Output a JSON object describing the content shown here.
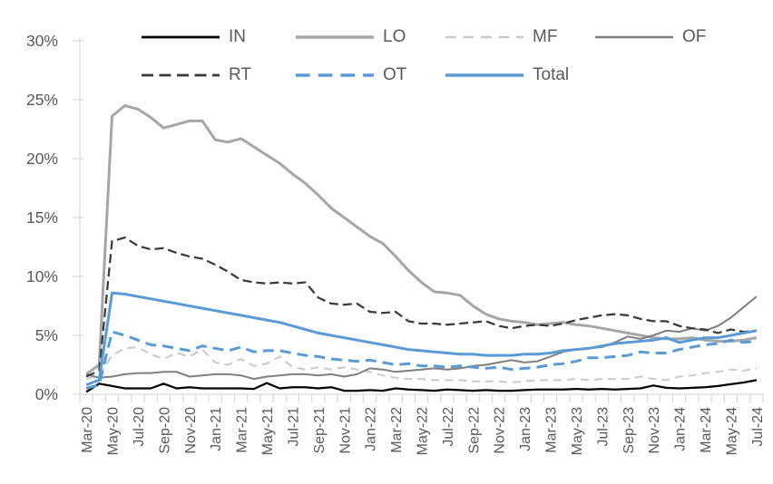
{
  "chart_data": {
    "type": "line",
    "title": "",
    "xlabel": "",
    "ylabel": "",
    "y_min": 0,
    "y_max": 30,
    "grid": "none",
    "legend_position": "top",
    "y_ticks": [
      "0%",
      "5%",
      "10%",
      "15%",
      "20%",
      "25%",
      "30%"
    ],
    "x": [
      "Mar-20",
      "Apr-20",
      "May-20",
      "Jun-20",
      "Jul-20",
      "Aug-20",
      "Sep-20",
      "Oct-20",
      "Nov-20",
      "Dec-20",
      "Jan-21",
      "Feb-21",
      "Mar-21",
      "Apr-21",
      "May-21",
      "Jun-21",
      "Jul-21",
      "Aug-21",
      "Sep-21",
      "Oct-21",
      "Nov-21",
      "Dec-21",
      "Jan-22",
      "Feb-22",
      "Mar-22",
      "Apr-22",
      "May-22",
      "Jun-22",
      "Jul-22",
      "Aug-22",
      "Sep-22",
      "Oct-22",
      "Nov-22",
      "Dec-22",
      "Jan-23",
      "Feb-23",
      "Mar-23",
      "Apr-23",
      "May-23",
      "Jun-23",
      "Jul-23",
      "Aug-23",
      "Sep-23",
      "Oct-23",
      "Nov-23",
      "Dec-23",
      "Jan-24",
      "Feb-24",
      "Mar-24",
      "Apr-24",
      "May-24",
      "Jun-24",
      "Jul-24"
    ],
    "x_tick_labels": [
      "Mar-20",
      "May-20",
      "Jul-20",
      "Sep-20",
      "Nov-20",
      "Jan-21",
      "Mar-21",
      "May-21",
      "Jul-21",
      "Sep-21",
      "Nov-21",
      "Jan-22",
      "Mar-22",
      "May-22",
      "Jul-22",
      "Sep-22",
      "Nov-22",
      "Jan-23",
      "Mar-23",
      "May-23",
      "Jul-23",
      "Sep-23",
      "Nov-23",
      "Jan-24",
      "Mar-24",
      "May-24",
      "Jul-24"
    ],
    "series": [
      {
        "name": "IN",
        "color": "#000000",
        "style": "solid",
        "width": 2.25,
        "dash": null,
        "values": [
          0.2,
          0.9,
          0.7,
          0.5,
          0.5,
          0.5,
          0.9,
          0.5,
          0.6,
          0.5,
          0.5,
          0.5,
          0.5,
          0.45,
          0.95,
          0.5,
          0.6,
          0.6,
          0.5,
          0.6,
          0.3,
          0.3,
          0.35,
          0.3,
          0.5,
          0.4,
          0.35,
          0.3,
          0.4,
          0.35,
          0.3,
          0.35,
          0.3,
          0.3,
          0.35,
          0.4,
          0.4,
          0.4,
          0.45,
          0.4,
          0.45,
          0.4,
          0.45,
          0.5,
          0.75,
          0.55,
          0.5,
          0.55,
          0.6,
          0.7,
          0.85,
          1.0,
          1.2
        ]
      },
      {
        "name": "LO",
        "color": "#a6a6a6",
        "style": "solid",
        "width": 3,
        "dash": null,
        "values": [
          1.7,
          2.5,
          23.6,
          24.5,
          24.2,
          23.5,
          22.6,
          22.9,
          23.2,
          23.2,
          21.6,
          21.4,
          21.7,
          21.0,
          20.3,
          19.6,
          18.7,
          17.9,
          16.9,
          15.8,
          15.0,
          14.2,
          13.4,
          12.8,
          11.7,
          10.5,
          9.5,
          8.7,
          8.6,
          8.4,
          7.5,
          6.8,
          6.4,
          6.2,
          6.1,
          5.9,
          6.0,
          6.1,
          5.9,
          5.8,
          5.6,
          5.4,
          5.2,
          5.0,
          4.8,
          4.7,
          4.7,
          4.8,
          4.6,
          4.5,
          4.5,
          4.6,
          4.8
        ]
      },
      {
        "name": "MF",
        "color": "#c9c9c9",
        "style": "dashed",
        "width": 2,
        "dash": [
          9,
          6
        ],
        "values": [
          1.3,
          1.6,
          3.3,
          3.9,
          4.0,
          3.4,
          3.0,
          3.5,
          3.2,
          3.8,
          2.7,
          2.5,
          3.0,
          2.4,
          2.6,
          3.2,
          2.3,
          2.1,
          2.3,
          2.1,
          2.3,
          2.1,
          1.9,
          1.6,
          1.4,
          1.3,
          1.3,
          1.2,
          1.2,
          1.2,
          1.1,
          1.1,
          1.1,
          1.0,
          1.1,
          1.2,
          1.2,
          1.2,
          1.3,
          1.2,
          1.3,
          1.3,
          1.3,
          1.5,
          1.3,
          1.2,
          1.5,
          1.6,
          1.8,
          1.9,
          2.1,
          2.0,
          2.2
        ]
      },
      {
        "name": "OF",
        "color": "#7f7f7f",
        "style": "solid",
        "width": 2,
        "dash": null,
        "values": [
          1.7,
          1.4,
          1.5,
          1.7,
          1.8,
          1.8,
          1.9,
          1.9,
          1.5,
          1.6,
          1.7,
          1.7,
          1.6,
          1.3,
          1.5,
          1.6,
          1.7,
          1.7,
          1.6,
          1.7,
          1.5,
          1.7,
          2.2,
          2.1,
          1.9,
          2.0,
          2.1,
          2.2,
          2.1,
          2.2,
          2.4,
          2.5,
          2.7,
          2.9,
          2.7,
          2.8,
          3.2,
          3.6,
          3.8,
          3.9,
          4.0,
          4.4,
          4.9,
          4.7,
          5.0,
          5.4,
          5.3,
          5.6,
          5.4,
          5.8,
          6.5,
          7.4,
          8.3
        ]
      },
      {
        "name": "RT",
        "color": "#3a3a3a",
        "style": "dashed",
        "width": 2.25,
        "dash": [
          10,
          5
        ],
        "values": [
          1.5,
          2.0,
          13.0,
          13.3,
          12.6,
          12.3,
          12.4,
          12.0,
          11.7,
          11.5,
          11.0,
          10.4,
          9.7,
          9.5,
          9.4,
          9.5,
          9.4,
          9.5,
          8.2,
          7.7,
          7.6,
          7.7,
          7.0,
          6.9,
          7.0,
          6.2,
          6.0,
          6.0,
          5.9,
          6.0,
          6.1,
          6.2,
          5.8,
          5.6,
          5.8,
          5.9,
          5.8,
          6.0,
          6.3,
          6.5,
          6.7,
          6.8,
          6.7,
          6.4,
          6.2,
          6.2,
          5.8,
          5.6,
          5.5,
          5.2,
          5.5,
          5.3,
          5.4
        ]
      },
      {
        "name": "OT",
        "color": "#5b9bd5",
        "style": "dashed",
        "width": 3,
        "dash": [
          12,
          7
        ],
        "values": [
          0.5,
          0.8,
          5.3,
          5.0,
          4.6,
          4.2,
          4.1,
          3.9,
          3.7,
          4.1,
          3.9,
          3.7,
          4.0,
          3.6,
          3.7,
          3.7,
          3.5,
          3.3,
          3.2,
          3.0,
          2.9,
          2.8,
          2.9,
          2.7,
          2.5,
          2.6,
          2.4,
          2.4,
          2.3,
          2.4,
          2.3,
          2.2,
          2.3,
          2.1,
          2.2,
          2.3,
          2.5,
          2.6,
          2.8,
          3.1,
          3.1,
          3.2,
          3.3,
          3.6,
          3.5,
          3.5,
          3.8,
          4.0,
          4.2,
          4.3,
          4.6,
          4.4,
          4.5
        ]
      },
      {
        "name": "Total",
        "color": "#5b9bd5",
        "style": "solid",
        "width": 3,
        "dash": null,
        "values": [
          0.8,
          1.2,
          8.6,
          8.5,
          8.3,
          8.1,
          7.9,
          7.7,
          7.5,
          7.3,
          7.1,
          6.9,
          6.7,
          6.5,
          6.3,
          6.1,
          5.8,
          5.5,
          5.2,
          5.0,
          4.8,
          4.6,
          4.4,
          4.2,
          4.0,
          3.8,
          3.7,
          3.6,
          3.5,
          3.4,
          3.4,
          3.3,
          3.3,
          3.3,
          3.4,
          3.4,
          3.5,
          3.7,
          3.8,
          3.9,
          4.1,
          4.3,
          4.4,
          4.5,
          4.6,
          4.8,
          4.4,
          4.6,
          4.8,
          4.8,
          5.0,
          5.2,
          5.4
        ]
      }
    ]
  },
  "legend": {
    "rows": [
      [
        "IN",
        "LO",
        "MF",
        "OF"
      ],
      [
        "RT",
        "OT",
        "Total"
      ]
    ]
  },
  "colors": {
    "axis": "#d9d9d9",
    "tick": "#d9d9d9",
    "label": "#595959",
    "background": "#ffffff",
    "accent_blue": "#5b9bd5"
  }
}
